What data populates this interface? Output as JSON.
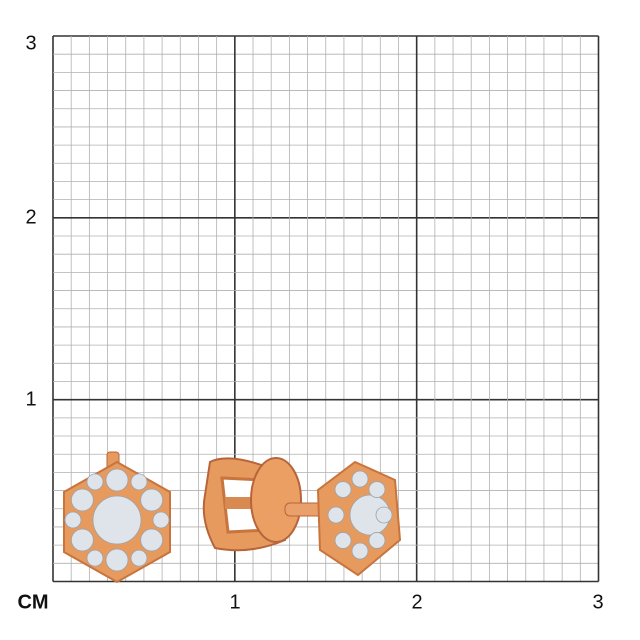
{
  "ruler": {
    "unit_label": "CM",
    "x_ticks": [
      "1",
      "2",
      "3"
    ],
    "y_ticks": [
      "3",
      "2",
      "1"
    ],
    "range_cm": [
      0,
      3
    ],
    "minor_divisions_per_cm": 10
  },
  "colors": {
    "major_grid": "#333333",
    "minor_grid": "#b0b0b0",
    "gold": "#e79a5e",
    "gold_dark": "#b8643a",
    "diamond": "#dfe4ea"
  },
  "product": {
    "type": "stud earrings",
    "views": [
      "front",
      "side"
    ]
  }
}
